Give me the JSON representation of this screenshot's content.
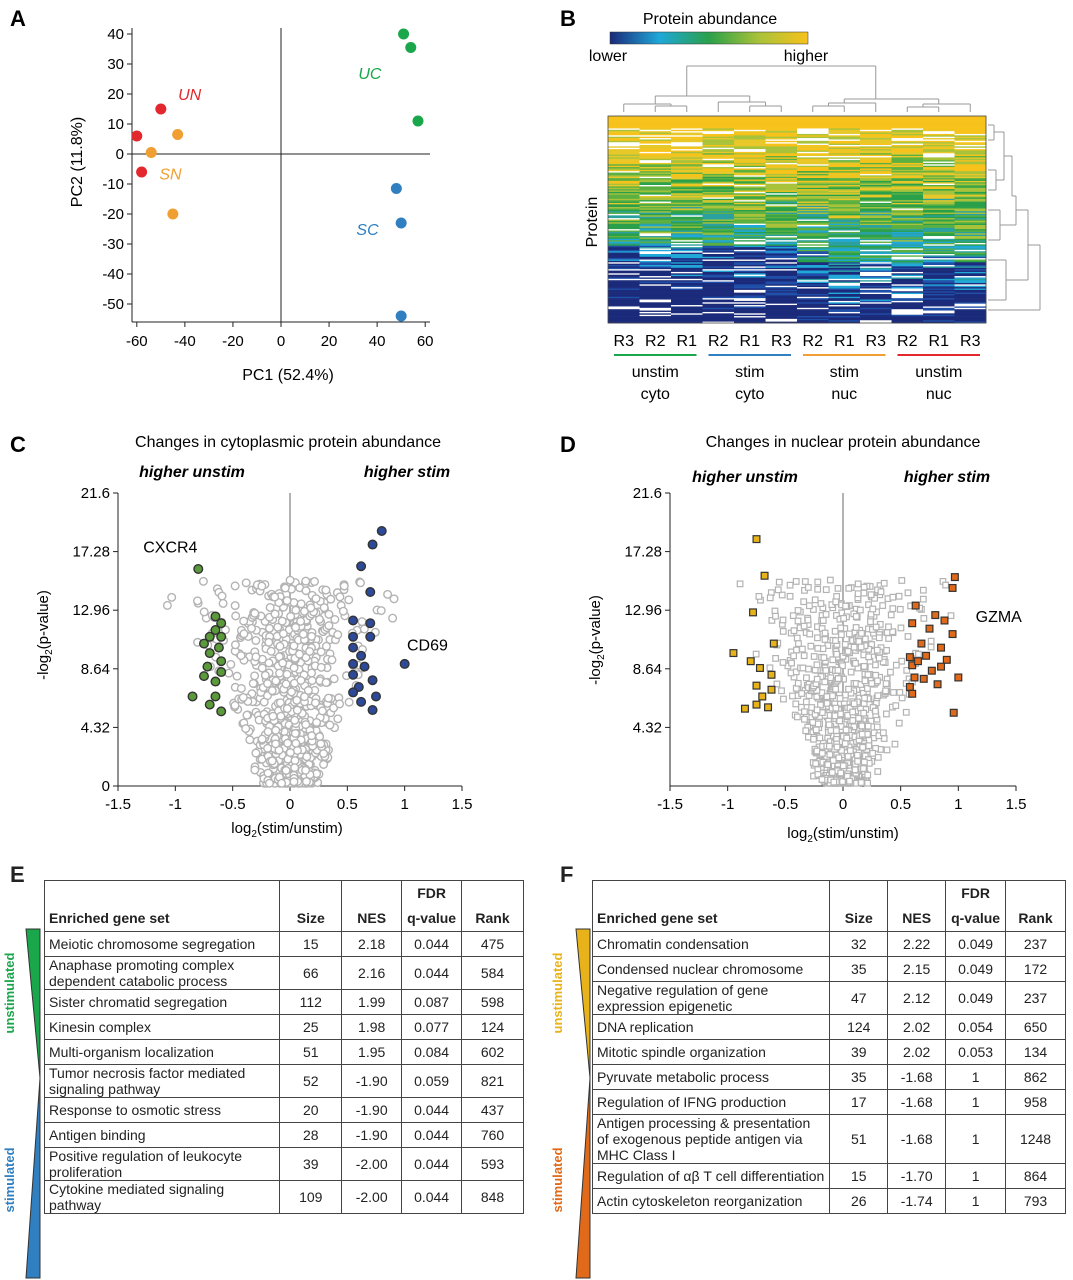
{
  "panels": {
    "A": "A",
    "B": "B",
    "C": "C",
    "D": "D",
    "E": "E",
    "F": "F"
  },
  "colors": {
    "grey": "#b3b3b3",
    "red": "#e2282c",
    "orange": "#f0a032",
    "green": "#1aa64a",
    "blue": "#2f7fc1",
    "volc_green": "#5a9a3a",
    "volc_blue": "#2d4a9a",
    "volc_gold": "#e8b31a",
    "volc_orange": "#e06a1a"
  },
  "chart_data": [
    {
      "type": "scatter",
      "panel": "A",
      "title": "",
      "xlabel": "PC1 (52.4%)",
      "ylabel": "PC2 (11.8%)",
      "xlim": [
        -62,
        62
      ],
      "ylim": [
        -56,
        42
      ],
      "xticks": [
        -60,
        -40,
        -20,
        0,
        20,
        40,
        60
      ],
      "yticks": [
        40,
        30,
        20,
        10,
        0,
        -10,
        -20,
        -30,
        -40,
        -50
      ],
      "series": [
        {
          "name": "UN",
          "color": "#e2282c",
          "points": [
            [
              -50,
              15
            ],
            [
              -60,
              6
            ],
            [
              -58,
              -6
            ]
          ]
        },
        {
          "name": "SN",
          "color": "#f0a032",
          "points": [
            [
              -43,
              6.5
            ],
            [
              -54,
              0.5
            ],
            [
              -45,
              -20
            ]
          ]
        },
        {
          "name": "UC",
          "color": "#1aa64a",
          "points": [
            [
              51,
              40
            ],
            [
              54,
              35.5
            ],
            [
              57,
              11
            ]
          ]
        },
        {
          "name": "SC",
          "color": "#2f7fc1",
          "points": [
            [
              48,
              -11.5
            ],
            [
              50,
              -23
            ],
            [
              50,
              -54
            ]
          ]
        }
      ],
      "labels": [
        {
          "text": "UN",
          "x": -38,
          "y": 18,
          "color": "#e2282c"
        },
        {
          "text": "SN",
          "x": -46,
          "y": -8.5,
          "color": "#f0a032"
        },
        {
          "text": "UC",
          "x": 37,
          "y": 25,
          "color": "#1aa64a"
        },
        {
          "text": "SC",
          "x": 36,
          "y": -27,
          "color": "#2f7fc1"
        }
      ]
    },
    {
      "type": "heatmap",
      "panel": "B",
      "title": "Protein abundance",
      "colorbar_low": "lower",
      "colorbar_high": "higher",
      "ylabel": "Protein",
      "columns": [
        "R3",
        "R2",
        "R1",
        "R2",
        "R1",
        "R3",
        "R2",
        "R1",
        "R3",
        "R2",
        "R1",
        "R3"
      ],
      "groups": [
        {
          "name": "unstim",
          "sub": "cyto",
          "color": "#1aa64a"
        },
        {
          "name": "stim",
          "sub": "cyto",
          "color": "#2f7fc1"
        },
        {
          "name": "stim",
          "sub": "nuc",
          "color": "#f0a032"
        },
        {
          "name": "unstim",
          "sub": "nuc",
          "color": "#e2282c"
        }
      ]
    },
    {
      "type": "scatter",
      "panel": "C",
      "title": "Changes in cytoplasmic protein abundance",
      "xlabel": "log",
      "xlabel_sub": "2",
      "xlabel_tail": "(stim/unstim)",
      "ylabel": "-log",
      "ylabel_sub": "2",
      "ylabel_tail": "(p-value)",
      "xlim": [
        -1.5,
        1.5
      ],
      "ylim": [
        0,
        21.6
      ],
      "xticks": [
        -1.5,
        -1.0,
        -0.5,
        0,
        0.5,
        1.0,
        1.5
      ],
      "yticks": [
        0,
        4.32,
        8.64,
        12.96,
        17.28,
        21.6
      ],
      "left_header": "higher unstim",
      "right_header": "higher stim",
      "annotations": [
        {
          "text": "CXCR4",
          "x": -1.28,
          "y": 17.2
        },
        {
          "text": "CD69",
          "x": 1.02,
          "y": 10.0
        }
      ],
      "highlight_left": [
        [
          -0.8,
          16.0
        ],
        [
          -0.65,
          12.5
        ],
        [
          -0.6,
          12.0
        ],
        [
          -0.65,
          11.5
        ],
        [
          -0.7,
          11.0
        ],
        [
          -0.6,
          11.0
        ],
        [
          -0.75,
          10.5
        ],
        [
          -0.62,
          10.2
        ],
        [
          -0.7,
          9.8
        ],
        [
          -0.6,
          9.2
        ],
        [
          -0.72,
          8.8
        ],
        [
          -0.6,
          8.4
        ],
        [
          -0.75,
          8.1
        ],
        [
          -0.65,
          7.7
        ],
        [
          -0.85,
          6.6
        ],
        [
          -0.65,
          6.6
        ],
        [
          -0.7,
          6.0
        ],
        [
          -0.6,
          5.5
        ]
      ],
      "highlight_right": [
        [
          0.8,
          18.8
        ],
        [
          0.72,
          17.8
        ],
        [
          0.62,
          16.2
        ],
        [
          0.7,
          14.3
        ],
        [
          0.55,
          12.2
        ],
        [
          0.7,
          12.0
        ],
        [
          0.55,
          11.0
        ],
        [
          0.7,
          11.0
        ],
        [
          0.55,
          10.2
        ],
        [
          0.62,
          9.6
        ],
        [
          0.55,
          9.0
        ],
        [
          0.65,
          8.8
        ],
        [
          0.55,
          8.2
        ],
        [
          0.72,
          7.8
        ],
        [
          0.6,
          7.3
        ],
        [
          0.55,
          6.9
        ],
        [
          0.75,
          6.6
        ],
        [
          0.62,
          6.2
        ],
        [
          0.72,
          5.6
        ],
        [
          1.0,
          9.0
        ]
      ],
      "grey_color": "#b3b3b3",
      "left_color": "#5a9a3a",
      "right_color": "#2d4a9a",
      "marker": "circle"
    },
    {
      "type": "scatter",
      "panel": "D",
      "title": "Changes in nuclear protein abundance",
      "xlabel": "log",
      "xlabel_sub": "2",
      "xlabel_tail": "(stim/unstim)",
      "ylabel": "-log",
      "ylabel_sub": "2",
      "ylabel_tail": "(p-value)",
      "xlim": [
        -1.5,
        1.5
      ],
      "ylim": [
        0,
        21.6
      ],
      "xticks": [
        -1.5,
        -1.0,
        -0.5,
        0,
        0.5,
        1.0,
        1.5
      ],
      "yticks": [
        4.32,
        8.64,
        12.96,
        17.28,
        21.6
      ],
      "left_header": "higher unstim",
      "right_header": "higher stim",
      "annotations": [
        {
          "text": "GZMA",
          "x": 1.15,
          "y": 12.1
        }
      ],
      "highlight_left": [
        [
          -0.75,
          18.2
        ],
        [
          -0.68,
          15.5
        ],
        [
          -0.78,
          12.8
        ],
        [
          -0.6,
          10.5
        ],
        [
          -0.95,
          9.8
        ],
        [
          -0.8,
          9.2
        ],
        [
          -0.72,
          8.7
        ],
        [
          -0.62,
          8.2
        ],
        [
          -0.75,
          7.4
        ],
        [
          -0.62,
          7.1
        ],
        [
          -0.7,
          6.6
        ],
        [
          -0.75,
          6.0
        ],
        [
          -0.85,
          5.7
        ],
        [
          -0.65,
          5.8
        ]
      ],
      "highlight_right": [
        [
          0.97,
          15.4
        ],
        [
          0.95,
          14.6
        ],
        [
          0.63,
          13.3
        ],
        [
          0.8,
          12.6
        ],
        [
          0.88,
          12.2
        ],
        [
          0.6,
          12.0
        ],
        [
          0.75,
          11.6
        ],
        [
          0.95,
          11.2
        ],
        [
          0.85,
          10.2
        ],
        [
          0.68,
          10.5
        ],
        [
          0.58,
          9.5
        ],
        [
          0.72,
          9.6
        ],
        [
          0.9,
          9.3
        ],
        [
          0.6,
          8.9
        ],
        [
          0.77,
          8.5
        ],
        [
          0.62,
          8.0
        ],
        [
          1.0,
          8.0
        ],
        [
          0.7,
          7.9
        ],
        [
          0.82,
          7.5
        ],
        [
          0.58,
          7.3
        ],
        [
          0.6,
          6.8
        ],
        [
          0.96,
          5.4
        ],
        [
          0.65,
          9.2
        ],
        [
          0.85,
          8.8
        ]
      ],
      "grey_color": "#b3b3b3",
      "left_color": "#e8b31a",
      "right_color": "#e06a1a",
      "marker": "square"
    },
    {
      "type": "table",
      "panel": "E",
      "header": [
        "Enriched gene set",
        "Size",
        "NES",
        "FDR q-value",
        "Rank"
      ],
      "side_labels": [
        {
          "text": "unstimulated",
          "color": "#1aa64a"
        },
        {
          "text": "stimulated",
          "color": "#2f7fc1"
        }
      ],
      "rows": [
        {
          "set": "Meiotic chromosome segregation",
          "size": "15",
          "nes": "2.18",
          "fdr": "0.044",
          "rank": "475"
        },
        {
          "set": "Anaphase promoting complex dependent catabolic process",
          "size": "66",
          "nes": "2.16",
          "fdr": "0.044",
          "rank": "584"
        },
        {
          "set": "Sister chromatid segregation",
          "size": "112",
          "nes": "1.99",
          "fdr": "0.087",
          "rank": "598"
        },
        {
          "set": "Kinesin complex",
          "size": "25",
          "nes": "1.98",
          "fdr": "0.077",
          "rank": "124"
        },
        {
          "set": "Multi-organism localization",
          "size": "51",
          "nes": "1.95",
          "fdr": "0.084",
          "rank": "602"
        },
        {
          "set": "Tumor necrosis factor mediated signaling pathway",
          "size": "52",
          "nes": "-1.90",
          "fdr": "0.059",
          "rank": "821"
        },
        {
          "set": "Response to osmotic stress",
          "size": "20",
          "nes": "-1.90",
          "fdr": "0.044",
          "rank": "437"
        },
        {
          "set": "Antigen binding",
          "size": "28",
          "nes": "-1.90",
          "fdr": "0.044",
          "rank": "760"
        },
        {
          "set": "Positive regulation of leukocyte proliferation",
          "size": "39",
          "nes": "-2.00",
          "fdr": "0.044",
          "rank": "593"
        },
        {
          "set": "Cytokine mediated signaling pathway",
          "size": "109",
          "nes": "-2.00",
          "fdr": "0.044",
          "rank": "848"
        }
      ]
    },
    {
      "type": "table",
      "panel": "F",
      "header": [
        "Enriched gene set",
        "Size",
        "NES",
        "FDR q-value",
        "Rank"
      ],
      "side_labels": [
        {
          "text": "unstimulated",
          "color": "#e8b31a"
        },
        {
          "text": "stimulated",
          "color": "#e06a1a"
        }
      ],
      "rows": [
        {
          "set": "Chromatin condensation",
          "size": "32",
          "nes": "2.22",
          "fdr": "0.049",
          "rank": "237"
        },
        {
          "set": "Condensed nuclear chromosome",
          "size": "35",
          "nes": "2.15",
          "fdr": "0.049",
          "rank": "172"
        },
        {
          "set": "Negative regulation of gene expression epigenetic",
          "size": "47",
          "nes": "2.12",
          "fdr": "0.049",
          "rank": "237"
        },
        {
          "set": "DNA replication",
          "size": "124",
          "nes": "2.02",
          "fdr": "0.054",
          "rank": "650"
        },
        {
          "set": "Mitotic spindle organization",
          "size": "39",
          "nes": "2.02",
          "fdr": "0.053",
          "rank": "134"
        },
        {
          "set": "Pyruvate metabolic process",
          "size": "35",
          "nes": "-1.68",
          "fdr": "1",
          "rank": "862"
        },
        {
          "set": "Regulation of IFNG production",
          "size": "17",
          "nes": "-1.68",
          "fdr": "1",
          "rank": "958"
        },
        {
          "set": "Antigen processing & presentation of exogenous peptide antigen via MHC Class I",
          "size": "51",
          "nes": "-1.68",
          "fdr": "1",
          "rank": "1248"
        },
        {
          "set": "Regulation of αβ T cell differentiation",
          "size": "15",
          "nes": "-1.70",
          "fdr": "1",
          "rank": "864"
        },
        {
          "set": "Actin cytoskeleton reorganization",
          "size": "26",
          "nes": "-1.74",
          "fdr": "1",
          "rank": "793"
        }
      ]
    }
  ]
}
